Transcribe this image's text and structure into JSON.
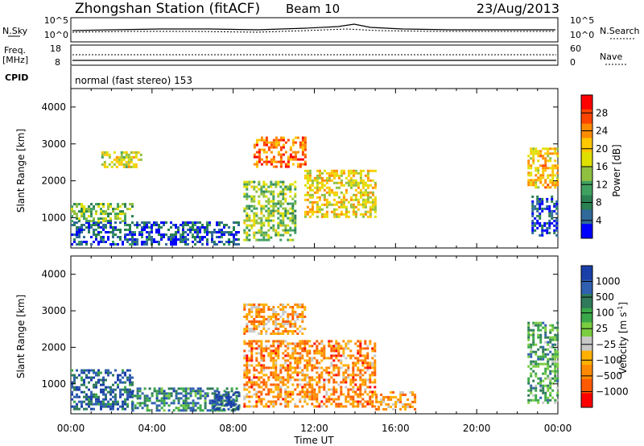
{
  "header": {
    "title": "Zhongshan Station (fitACF)",
    "beam": "Beam 10",
    "date": "23/Aug/2013"
  },
  "top_panels": {
    "nsky_label": "N.Sky",
    "nsearch_label": "N.Search",
    "noise_ticks": [
      "10^5",
      "10^0"
    ],
    "freq_label_line1": "Freq.",
    "freq_label_line2": "[MHz]",
    "freq_ticks": [
      "18",
      "8"
    ],
    "nave_label": "Nave",
    "nave_ticks": [
      "60",
      "0"
    ],
    "cpid_label": "CPID",
    "cpid_text": "normal (fast stereo) 153"
  },
  "chart_data": [
    {
      "type": "heatmap",
      "name": "power",
      "xlabel": "Time UT",
      "ylabel": "Slant Range [km]",
      "xlim": [
        0,
        24
      ],
      "ylim": [
        180,
        4500
      ],
      "x_ticks": [
        "00:00",
        "04:00",
        "08:00",
        "12:00",
        "16:00",
        "20:00",
        "00:00"
      ],
      "y_ticks": [
        1000,
        2000,
        3000,
        4000
      ],
      "colorbar": {
        "label": "Power [dB]",
        "ticks": [
          "28",
          "24",
          "20",
          "16",
          "12",
          "8",
          "4"
        ],
        "colors": [
          "#ff0000",
          "#ff4400",
          "#ff8c00",
          "#ffc800",
          "#e0e000",
          "#90c040",
          "#40a060",
          "#2a8050",
          "#306a9a",
          "#0000ff"
        ]
      },
      "clusters": [
        {
          "x": [
            0.0,
            8.3
          ],
          "y": [
            300,
            900
          ],
          "level": 0.85
        },
        {
          "x": [
            0.0,
            3.0
          ],
          "y": [
            900,
            1400
          ],
          "level": 0.6
        },
        {
          "x": [
            1.5,
            3.5
          ],
          "y": [
            2400,
            2800
          ],
          "level": 0.45
        },
        {
          "x": [
            8.5,
            11.0
          ],
          "y": [
            400,
            2000
          ],
          "level": 0.55
        },
        {
          "x": [
            9.0,
            11.5
          ],
          "y": [
            2400,
            3200
          ],
          "level": 0.2
        },
        {
          "x": [
            11.5,
            15.0
          ],
          "y": [
            1000,
            2300
          ],
          "level": 0.4
        },
        {
          "x": [
            22.7,
            24.0
          ],
          "y": [
            500,
            1600
          ],
          "level": 0.9
        },
        {
          "x": [
            22.5,
            24.0
          ],
          "y": [
            1800,
            2900
          ],
          "level": 0.35
        }
      ]
    },
    {
      "type": "heatmap",
      "name": "velocity",
      "xlabel": "Time UT",
      "ylabel": "Slant Range [km]",
      "xlim": [
        0,
        24
      ],
      "ylim": [
        180,
        4500
      ],
      "x_ticks": [
        "00:00",
        "04:00",
        "08:00",
        "12:00",
        "16:00",
        "20:00",
        "00:00"
      ],
      "y_ticks": [
        1000,
        2000,
        3000,
        4000
      ],
      "colorbar": {
        "label": "Velocity [m s",
        "label_sup": "-1",
        "label_end": "]",
        "ticks": [
          "1000",
          "500",
          "100",
          "25",
          "−25",
          "−100",
          "−500",
          "−1000"
        ],
        "colors": [
          "#1a3fa8",
          "#3060b0",
          "#2e7a5a",
          "#3aa848",
          "#7acc40",
          "#c8c8c8",
          "#ffb000",
          "#ff8a00",
          "#ff5a00",
          "#ff0000"
        ]
      },
      "clusters": [
        {
          "x": [
            0.0,
            3.0
          ],
          "y": [
            300,
            1400
          ],
          "level": 0.15
        },
        {
          "x": [
            3.0,
            8.3
          ],
          "y": [
            300,
            900
          ],
          "level": 0.25
        },
        {
          "x": [
            7.0,
            8.3
          ],
          "y": [
            300,
            800
          ],
          "level": 0.05
        },
        {
          "x": [
            8.5,
            15.0
          ],
          "y": [
            400,
            2200
          ],
          "level": 0.75
        },
        {
          "x": [
            8.5,
            11.5
          ],
          "y": [
            2400,
            3200
          ],
          "level": 0.7
        },
        {
          "x": [
            15.0,
            17.0
          ],
          "y": [
            300,
            800
          ],
          "level": 0.7
        },
        {
          "x": [
            22.5,
            24.0
          ],
          "y": [
            500,
            2700
          ],
          "level": 0.35
        }
      ]
    }
  ]
}
